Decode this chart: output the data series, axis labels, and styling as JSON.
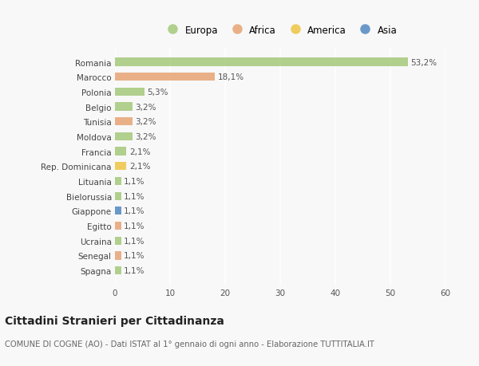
{
  "categories": [
    "Romania",
    "Marocco",
    "Polonia",
    "Belgio",
    "Tunisia",
    "Moldova",
    "Francia",
    "Rep. Dominicana",
    "Lituania",
    "Bielorussia",
    "Giappone",
    "Egitto",
    "Ucraina",
    "Senegal",
    "Spagna"
  ],
  "values": [
    53.2,
    18.1,
    5.3,
    3.2,
    3.2,
    3.2,
    2.1,
    2.1,
    1.1,
    1.1,
    1.1,
    1.1,
    1.1,
    1.1,
    1.1
  ],
  "labels": [
    "53,2%",
    "18,1%",
    "5,3%",
    "3,2%",
    "3,2%",
    "3,2%",
    "2,1%",
    "2,1%",
    "1,1%",
    "1,1%",
    "1,1%",
    "1,1%",
    "1,1%",
    "1,1%",
    "1,1%"
  ],
  "continents": [
    "Europa",
    "Africa",
    "Europa",
    "Europa",
    "Africa",
    "Europa",
    "Europa",
    "America",
    "Europa",
    "Europa",
    "Asia",
    "Africa",
    "Europa",
    "Africa",
    "Europa"
  ],
  "continent_colors": {
    "Europa": "#aacb82",
    "Africa": "#e8a97c",
    "America": "#f0c84e",
    "Asia": "#5b8ec4"
  },
  "legend_items": [
    "Europa",
    "Africa",
    "America",
    "Asia"
  ],
  "legend_colors": [
    "#aacb82",
    "#e8a97c",
    "#f0c84e",
    "#5b8ec4"
  ],
  "xlim": [
    0,
    60
  ],
  "xticks": [
    0,
    10,
    20,
    30,
    40,
    50,
    60
  ],
  "title": "Cittadini Stranieri per Cittadinanza",
  "subtitle": "COMUNE DI COGNE (AO) - Dati ISTAT al 1° gennaio di ogni anno - Elaborazione TUTTITALIA.IT",
  "background_color": "#f8f8f8",
  "bar_alpha": 0.9,
  "grid_color": "#ffffff",
  "label_fontsize": 7.5,
  "tick_fontsize": 7.5,
  "title_fontsize": 10,
  "subtitle_fontsize": 7.2
}
